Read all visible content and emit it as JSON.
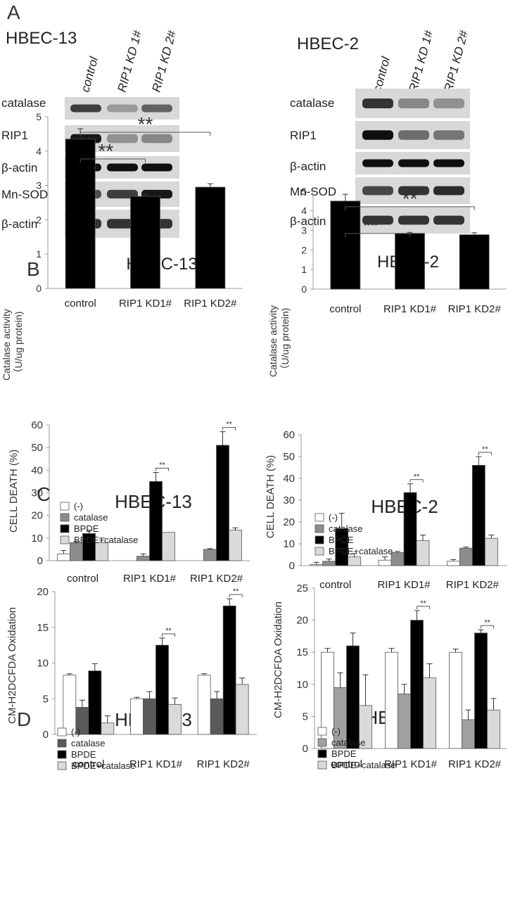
{
  "panels": {
    "A": "A",
    "B": "B",
    "C": "C",
    "D": "D"
  },
  "blots": [
    {
      "cell_line": "HBEC-13",
      "lanes": [
        "control",
        "RIP1 KD 1#",
        "RIP1 KD 2#"
      ],
      "rows": [
        {
          "label": "catalase",
          "intensity": [
            0.75,
            0.25,
            0.55
          ]
        },
        {
          "label": "RIP1",
          "intensity": [
            0.95,
            0.3,
            0.35
          ]
        },
        {
          "label": "β-actin",
          "intensity": [
            1.0,
            1.0,
            1.0
          ]
        },
        {
          "label": "Mn-SOD",
          "intensity": [
            0.65,
            0.75,
            0.95
          ]
        },
        {
          "label": "β-actin",
          "intensity": [
            0.8,
            0.8,
            0.8
          ]
        }
      ]
    },
    {
      "cell_line": "HBEC-2",
      "lanes": [
        "control",
        "RIP1 KD 1#",
        "RIP1 KD 2#"
      ],
      "rows": [
        {
          "label": "catalase",
          "intensity": [
            0.8,
            0.35,
            0.3
          ]
        },
        {
          "label": "RIP1",
          "intensity": [
            1.0,
            0.5,
            0.45
          ]
        },
        {
          "label": "β-actin",
          "intensity": [
            1.0,
            1.0,
            1.0
          ]
        },
        {
          "label": "Mn-SOD",
          "intensity": [
            0.7,
            0.8,
            0.85
          ]
        },
        {
          "label": "β-actin",
          "intensity": [
            0.8,
            0.8,
            0.8
          ]
        }
      ]
    }
  ],
  "chart_data": [
    {
      "panel": "B",
      "type": "bar",
      "title": "HBEC-13",
      "ylabel": [
        "Catalase activity",
        "（U/ug protein)"
      ],
      "categories": [
        "control",
        "RIP1 KD1#",
        "RIP1 KD2#"
      ],
      "ylim": [
        0,
        5
      ],
      "yticks": [
        0,
        1,
        2,
        3,
        4,
        5
      ],
      "series": [
        {
          "values": [
            4.35,
            2.68,
            2.95
          ],
          "errors": [
            0.3,
            0.07,
            0.1
          ],
          "color": "#000000"
        }
      ],
      "significance": [
        {
          "from": 0,
          "to": 1,
          "label": "**"
        },
        {
          "from": 0,
          "to": 2,
          "label": "**"
        }
      ]
    },
    {
      "panel": "B",
      "type": "bar",
      "title": "HBEC-2",
      "ylabel": [
        "Catalase activity",
        "（U/ug protein)"
      ],
      "categories": [
        "control",
        "RIP1 KD1#",
        "RIP1 KD2#"
      ],
      "ylim": [
        0,
        5.5
      ],
      "yticks": [
        0,
        1,
        2,
        3,
        4,
        5
      ],
      "series": [
        {
          "values": [
            4.5,
            2.85,
            2.78
          ],
          "errors": [
            0.35,
            0.05,
            0.1
          ],
          "color": "#000000"
        }
      ],
      "significance": [
        {
          "from": 0,
          "to": 1,
          "label": "**"
        },
        {
          "from": 0,
          "to": 2,
          "label": "**"
        }
      ]
    },
    {
      "panel": "C",
      "type": "bar",
      "title": "HBEC-13",
      "ylabel": [
        "CELL DEATH (%)"
      ],
      "categories": [
        "control",
        "RIP1 KD1#",
        "RIP1 KD2#"
      ],
      "ylim": [
        0,
        60
      ],
      "yticks": [
        0,
        10,
        20,
        30,
        40,
        50,
        60
      ],
      "legend": [
        "(-)",
        "catalase",
        "BPDE",
        "BPDE+catalase"
      ],
      "series": [
        {
          "name": "(-)",
          "values": [
            3,
            0,
            0
          ],
          "errors": [
            1.5,
            0,
            0
          ],
          "color": "#ffffff"
        },
        {
          "name": "catalase",
          "values": [
            8,
            2,
            5
          ],
          "errors": [
            0.5,
            1,
            0.3
          ],
          "color": "#8c8c8c"
        },
        {
          "name": "BPDE",
          "values": [
            12,
            35,
            51
          ],
          "errors": [
            1.5,
            4,
            6
          ],
          "color": "#000000"
        },
        {
          "name": "BPDE+catalase",
          "values": [
            8,
            12.5,
            13.5
          ],
          "errors": [
            2,
            0,
            1
          ],
          "color": "#dadada"
        }
      ],
      "significance": [
        {
          "category": 1,
          "label": "**"
        },
        {
          "category": 2,
          "label": "**"
        }
      ]
    },
    {
      "panel": "C",
      "type": "bar",
      "title": "HBEC-2",
      "ylabel": [
        "CELL DEATH (%)"
      ],
      "categories": [
        "control",
        "RIP1 KD1#",
        "RIP1 KD2#"
      ],
      "ylim": [
        0,
        60
      ],
      "yticks": [
        0,
        10,
        20,
        30,
        40,
        50,
        60
      ],
      "legend": [
        "(-)",
        "catalase",
        "BPDE",
        "BPDE+catalase"
      ],
      "series": [
        {
          "name": "(-)",
          "values": [
            0.5,
            2.5,
            2
          ],
          "errors": [
            1,
            1.5,
            0.8
          ],
          "color": "#ffffff"
        },
        {
          "name": "catalase",
          "values": [
            2,
            6,
            8
          ],
          "errors": [
            1,
            0.5,
            0.5
          ],
          "color": "#8c8c8c"
        },
        {
          "name": "BPDE",
          "values": [
            17,
            33.5,
            46
          ],
          "errors": [
            7,
            4,
            4
          ],
          "color": "#000000"
        },
        {
          "name": "BPDE+catalase",
          "values": [
            4,
            11.5,
            12.5
          ],
          "errors": [
            1.5,
            2.5,
            1.5
          ],
          "color": "#dadada"
        }
      ],
      "significance": [
        {
          "category": 1,
          "label": "**"
        },
        {
          "category": 2,
          "label": "**"
        }
      ]
    },
    {
      "panel": "D",
      "type": "bar",
      "title": "HBEC-13",
      "ylabel": [
        "CM-H2DCFDA Oxidation"
      ],
      "categories": [
        "control",
        "RIP1 KD1#",
        "RIP1 KD2#"
      ],
      "ylim": [
        0,
        20
      ],
      "yticks": [
        0,
        5,
        10,
        15,
        20
      ],
      "legend": [
        "(-)",
        "catalase",
        "BPDE",
        "BPDE+catalase"
      ],
      "series": [
        {
          "name": "(-)",
          "values": [
            8.3,
            5,
            8.3
          ],
          "errors": [
            0.2,
            0.2,
            0.2
          ],
          "color": "#ffffff"
        },
        {
          "name": "catalase",
          "values": [
            3.8,
            5,
            5
          ],
          "errors": [
            1,
            1,
            1
          ],
          "color": "#5a5a5a"
        },
        {
          "name": "BPDE",
          "values": [
            8.9,
            12.5,
            18
          ],
          "errors": [
            1,
            1,
            1
          ],
          "color": "#000000"
        },
        {
          "name": "BPDE+catalase",
          "values": [
            1.6,
            4.2,
            7
          ],
          "errors": [
            1,
            0.9,
            0.9
          ],
          "color": "#dadada"
        }
      ],
      "significance": [
        {
          "category": 1,
          "label": "**"
        },
        {
          "category": 2,
          "label": "**"
        }
      ]
    },
    {
      "panel": "D",
      "type": "bar",
      "title": "HBEC-2",
      "ylabel": [
        "CM-H2DCFDA Oxidation"
      ],
      "categories": [
        "control",
        "RIP1 KD1#",
        "RIP1 KD2#"
      ],
      "ylim": [
        0,
        25
      ],
      "yticks": [
        0,
        5,
        10,
        15,
        20,
        25
      ],
      "legend": [
        "(-)",
        "catalase",
        "BPDE",
        "BPDE+catalase"
      ],
      "series": [
        {
          "name": "(-)",
          "values": [
            15,
            15,
            15
          ],
          "errors": [
            0.6,
            0.6,
            0.5
          ],
          "color": "#ffffff"
        },
        {
          "name": "catalase",
          "values": [
            9.5,
            8.5,
            4.5
          ],
          "errors": [
            2.3,
            1.5,
            1.5
          ],
          "color": "#a0a0a0"
        },
        {
          "name": "BPDE",
          "values": [
            16,
            20,
            18
          ],
          "errors": [
            2,
            1.5,
            0.5
          ],
          "color": "#000000"
        },
        {
          "name": "BPDE+catalase",
          "values": [
            6.7,
            11,
            6
          ],
          "errors": [
            4.8,
            2.2,
            1.8
          ],
          "color": "#dadada"
        }
      ],
      "significance": [
        {
          "category": 1,
          "label": "**"
        },
        {
          "category": 2,
          "label": "**"
        }
      ]
    }
  ]
}
